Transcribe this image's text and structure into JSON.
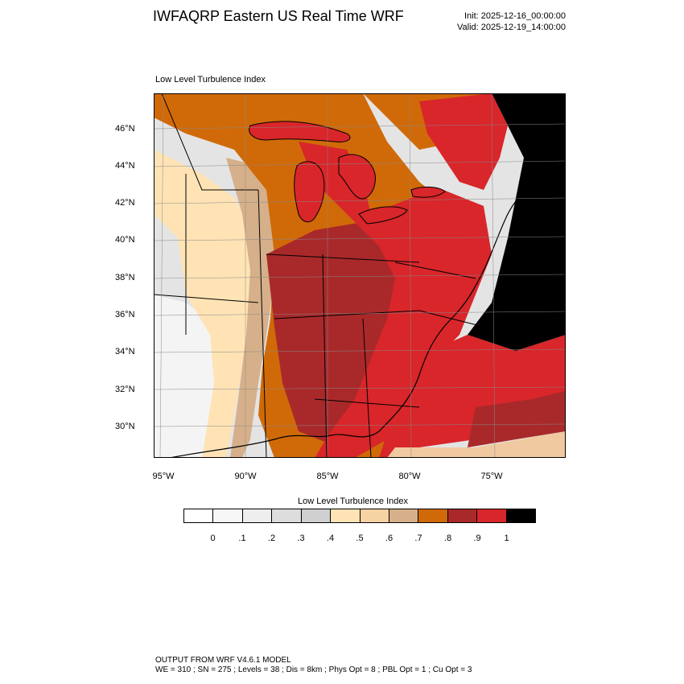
{
  "header": {
    "title": "IWFAQRP Eastern US Real Time WRF",
    "init": "Init: 2025-12-16_00:00:00",
    "valid": "Valid: 2025-12-19_14:00:00"
  },
  "map": {
    "subtitle": "Low Level Turbulence Index",
    "lat_labels": [
      "46°N",
      "44°N",
      "42°N",
      "40°N",
      "38°N",
      "36°N",
      "34°N",
      "32°N",
      "30°N"
    ],
    "lon_labels": [
      "95°W",
      "90°W",
      "85°W",
      "80°W",
      "75°W"
    ]
  },
  "colorbar": {
    "title": "Low Level Turbulence Index",
    "ticks": [
      "0",
      ".1",
      ".2",
      ".3",
      ".4",
      ".5",
      ".6",
      ".7",
      ".8",
      ".9",
      "1"
    ],
    "colors": [
      "#ffffff",
      "#f7f7f7",
      "#eeeeee",
      "#dddddd",
      "#d0d0d0",
      "#ffe3b5",
      "#f6d3a3",
      "#d6b08a",
      "#d06a08",
      "#a9292a",
      "#d8262a",
      "#000000"
    ]
  },
  "footer": {
    "line1": "OUTPUT FROM WRF V4.6.1 MODEL",
    "line2": "WE = 310 ; SN = 275 ; Levels = 38 ; Dis = 8km ; Phys Opt = 8 ; PBL Opt = 1 ; Cu Opt = 3"
  }
}
